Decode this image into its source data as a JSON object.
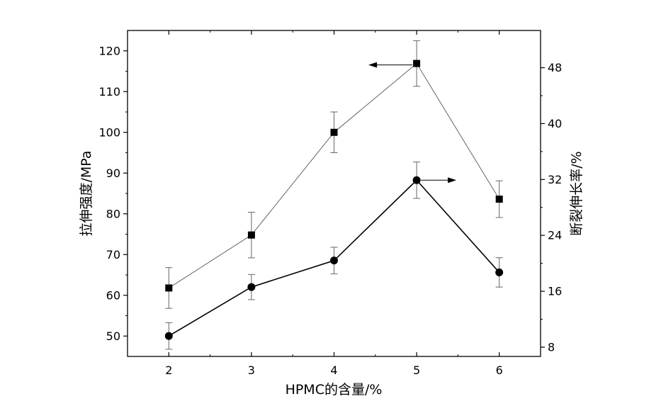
{
  "chart_data": {
    "type": "line",
    "title": "",
    "xlabel": "HPMC的含量/%",
    "ylabel_left": "拉伸强度/MPa",
    "ylabel_right": "断裂伸长率/%",
    "x": [
      2,
      3,
      4,
      5,
      6
    ],
    "xlim": [
      1.5,
      6.5
    ],
    "ylim_left": [
      45,
      125
    ],
    "ylim_right": [
      6.67,
      53.33
    ],
    "xticks": [
      2,
      3,
      4,
      5,
      6
    ],
    "yticks_left": [
      50,
      60,
      70,
      80,
      90,
      100,
      110,
      120
    ],
    "yticks_right": [
      8,
      16,
      24,
      32,
      40,
      48
    ],
    "grid": false,
    "legend": "none",
    "series": [
      {
        "axis": "left",
        "marker": "square",
        "line_color": "#555555",
        "values": [
          61.8,
          74.8,
          100.0,
          116.9,
          83.6
        ],
        "err": [
          5.0,
          5.6,
          5.0,
          5.6,
          4.5
        ],
        "indicator_arrow": "left"
      },
      {
        "axis": "right",
        "marker": "circle",
        "line_color": "#000000",
        "values": [
          9.6,
          16.6,
          20.4,
          31.9,
          18.7
        ],
        "err": [
          1.9,
          1.8,
          1.9,
          2.6,
          2.1
        ],
        "indicator_arrow": "right"
      }
    ]
  }
}
